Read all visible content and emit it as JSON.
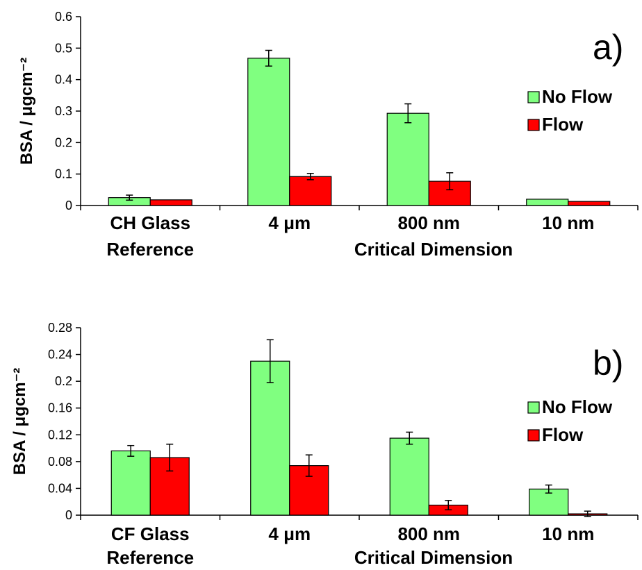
{
  "chart_data": [
    {
      "type": "bar",
      "panel_label": "a)",
      "ylabel": "BSA / μgcm⁻²",
      "xlabel": "Critical Dimension",
      "ylim": [
        0,
        0.6
      ],
      "yticks": [
        "0",
        "0.1",
        "0.2",
        "0.3",
        "0.4",
        "0.5",
        "0.6"
      ],
      "categories": [
        "CH Glass",
        "4 μm",
        "800 nm",
        "10 nm"
      ],
      "category_sublabels": [
        "Reference",
        "",
        "",
        ""
      ],
      "legend": "right",
      "grid": false,
      "series": [
        {
          "name": "No Flow",
          "color": "#80ff80",
          "values": [
            0.025,
            0.468,
            0.293,
            0.02
          ],
          "errors": [
            0.008,
            0.025,
            0.03,
            0
          ]
        },
        {
          "name": "Flow",
          "color": "#ff0000",
          "values": [
            0.018,
            0.092,
            0.077,
            0.013
          ],
          "errors": [
            0,
            0.01,
            0.027,
            0
          ]
        }
      ]
    },
    {
      "type": "bar",
      "panel_label": "b)",
      "ylabel": "BSA / μgcm⁻²",
      "xlabel": "Critical Dimension",
      "ylim": [
        0,
        0.28
      ],
      "yticks": [
        "0",
        "0.04",
        "0.08",
        "0.12",
        "0.16",
        "0.2",
        "0.24",
        "0.28"
      ],
      "categories": [
        "CF Glass",
        "4 μm",
        "800 nm",
        "10 nm"
      ],
      "category_sublabels": [
        "Reference",
        "",
        "",
        ""
      ],
      "legend": "right",
      "grid": false,
      "series": [
        {
          "name": "No Flow",
          "color": "#80ff80",
          "values": [
            0.096,
            0.23,
            0.115,
            0.039
          ],
          "errors": [
            0.008,
            0.032,
            0.009,
            0.006
          ]
        },
        {
          "name": "Flow",
          "color": "#ff0000",
          "values": [
            0.086,
            0.074,
            0.015,
            0.002
          ],
          "errors": [
            0.02,
            0.016,
            0.007,
            0.004
          ]
        }
      ]
    }
  ]
}
